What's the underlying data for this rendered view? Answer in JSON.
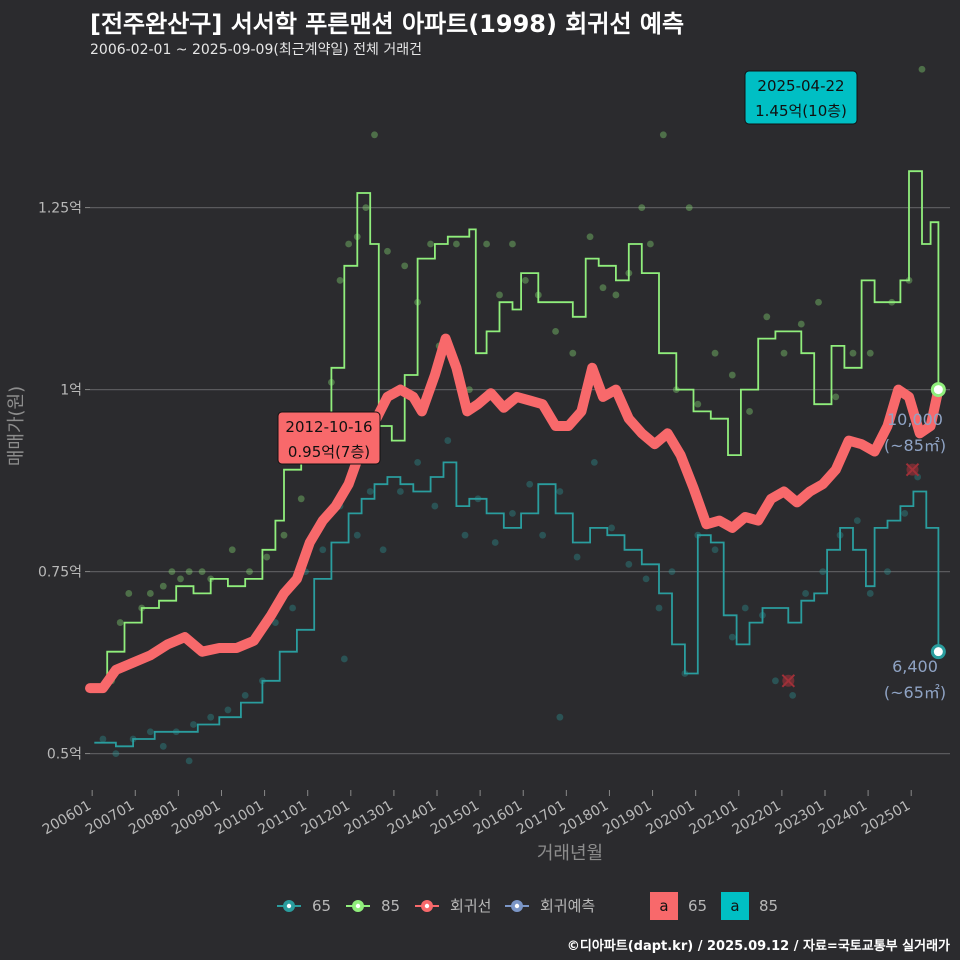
{
  "title": "[전주완산구] 서서학 푸른맨션 아파트(1998) 회귀선 예측",
  "subtitle": "2006-02-01 ~ 2025-09-09(최근계약일) 전체 거래건",
  "caption": "©디아파트(dapt.kr) / 2025.09.12 / 자료=국토교통부 실거래가",
  "colors": {
    "background": "#2b2b2e",
    "grid": "#5a5a5d",
    "s65": "#2a9d9e",
    "s85": "#90ee7c",
    "regression": "#f8696b",
    "forecast": "#7b96c7",
    "label65": "#00bfc4",
    "outlier": "#a03038"
  },
  "chart_data": {
    "type": "line",
    "xlabel": "거래년월",
    "ylabel": "매매가(원)",
    "x_ticks": [
      "200601",
      "200701",
      "200801",
      "200901",
      "201001",
      "201101",
      "201201",
      "201301",
      "201401",
      "201501",
      "201601",
      "201701",
      "201801",
      "201901",
      "202001",
      "202101",
      "202201",
      "202301",
      "202401",
      "202501"
    ],
    "xlim": [
      2006.0,
      2025.95
    ],
    "ylim": [
      0.45,
      1.45
    ],
    "y_ticks": [
      {
        "value": 0.5,
        "label": "0.5억"
      },
      {
        "value": 0.75,
        "label": "0.75억"
      },
      {
        "value": 1.0,
        "label": "1억"
      },
      {
        "value": 1.25,
        "label": "1.25억"
      }
    ],
    "series": [
      {
        "name": "85",
        "role": "area85",
        "points": [
          [
            2006.1,
            0.59
          ],
          [
            2006.4,
            0.64
          ],
          [
            2006.8,
            0.68
          ],
          [
            2007.2,
            0.7
          ],
          [
            2007.6,
            0.71
          ],
          [
            2008.0,
            0.73
          ],
          [
            2008.4,
            0.72
          ],
          [
            2008.8,
            0.74
          ],
          [
            2009.2,
            0.73
          ],
          [
            2009.6,
            0.74
          ],
          [
            2010.0,
            0.78
          ],
          [
            2010.3,
            0.82
          ],
          [
            2010.5,
            0.89
          ],
          [
            2010.9,
            0.9
          ],
          [
            2011.2,
            0.96
          ],
          [
            2011.6,
            1.03
          ],
          [
            2011.9,
            1.17
          ],
          [
            2012.2,
            1.27
          ],
          [
            2012.5,
            1.2
          ],
          [
            2012.7,
            0.95
          ],
          [
            2013.0,
            0.93
          ],
          [
            2013.3,
            1.02
          ],
          [
            2013.6,
            1.18
          ],
          [
            2014.0,
            1.2
          ],
          [
            2014.3,
            1.21
          ],
          [
            2014.6,
            1.21
          ],
          [
            2014.8,
            1.22
          ],
          [
            2014.95,
            1.05
          ],
          [
            2015.2,
            1.08
          ],
          [
            2015.5,
            1.12
          ],
          [
            2015.8,
            1.11
          ],
          [
            2016.0,
            1.16
          ],
          [
            2016.4,
            1.12
          ],
          [
            2016.7,
            1.12
          ],
          [
            2017.2,
            1.1
          ],
          [
            2017.5,
            1.18
          ],
          [
            2017.8,
            1.17
          ],
          [
            2018.2,
            1.15
          ],
          [
            2018.5,
            1.2
          ],
          [
            2018.8,
            1.16
          ],
          [
            2019.2,
            1.05
          ],
          [
            2019.6,
            1.0
          ],
          [
            2020.0,
            0.97
          ],
          [
            2020.4,
            0.96
          ],
          [
            2020.8,
            0.91
          ],
          [
            2021.1,
            1.0
          ],
          [
            2021.5,
            1.07
          ],
          [
            2021.9,
            1.08
          ],
          [
            2022.2,
            1.08
          ],
          [
            2022.5,
            1.05
          ],
          [
            2022.8,
            0.98
          ],
          [
            2023.2,
            1.06
          ],
          [
            2023.5,
            1.03
          ],
          [
            2023.9,
            1.15
          ],
          [
            2024.2,
            1.12
          ],
          [
            2024.5,
            1.12
          ],
          [
            2024.8,
            1.15
          ],
          [
            2025.0,
            1.3
          ],
          [
            2025.3,
            1.2
          ],
          [
            2025.5,
            1.23
          ],
          [
            2025.68,
            1.0
          ]
        ]
      },
      {
        "name": "65",
        "role": "area65",
        "points": [
          [
            2006.1,
            0.515
          ],
          [
            2006.6,
            0.51
          ],
          [
            2007.0,
            0.52
          ],
          [
            2007.5,
            0.53
          ],
          [
            2008.0,
            0.53
          ],
          [
            2008.5,
            0.54
          ],
          [
            2009.0,
            0.55
          ],
          [
            2009.5,
            0.57
          ],
          [
            2010.0,
            0.6
          ],
          [
            2010.4,
            0.64
          ],
          [
            2010.8,
            0.67
          ],
          [
            2011.2,
            0.74
          ],
          [
            2011.6,
            0.79
          ],
          [
            2012.0,
            0.83
          ],
          [
            2012.3,
            0.85
          ],
          [
            2012.6,
            0.87
          ],
          [
            2012.9,
            0.88
          ],
          [
            2013.2,
            0.87
          ],
          [
            2013.5,
            0.86
          ],
          [
            2013.9,
            0.88
          ],
          [
            2014.2,
            0.9
          ],
          [
            2014.5,
            0.84
          ],
          [
            2014.8,
            0.85
          ],
          [
            2015.2,
            0.83
          ],
          [
            2015.6,
            0.81
          ],
          [
            2016.0,
            0.83
          ],
          [
            2016.4,
            0.87
          ],
          [
            2016.8,
            0.83
          ],
          [
            2017.2,
            0.79
          ],
          [
            2017.6,
            0.81
          ],
          [
            2018.0,
            0.8
          ],
          [
            2018.4,
            0.78
          ],
          [
            2018.8,
            0.76
          ],
          [
            2019.2,
            0.72
          ],
          [
            2019.5,
            0.65
          ],
          [
            2019.8,
            0.61
          ],
          [
            2020.1,
            0.8
          ],
          [
            2020.4,
            0.79
          ],
          [
            2020.7,
            0.69
          ],
          [
            2021.0,
            0.65
          ],
          [
            2021.3,
            0.68
          ],
          [
            2021.6,
            0.7
          ],
          [
            2021.9,
            0.7
          ],
          [
            2022.2,
            0.68
          ],
          [
            2022.5,
            0.71
          ],
          [
            2022.8,
            0.72
          ],
          [
            2023.1,
            0.78
          ],
          [
            2023.4,
            0.81
          ],
          [
            2023.7,
            0.78
          ],
          [
            2024.0,
            0.73
          ],
          [
            2024.2,
            0.81
          ],
          [
            2024.5,
            0.82
          ],
          [
            2024.8,
            0.84
          ],
          [
            2025.1,
            0.86
          ],
          [
            2025.4,
            0.81
          ],
          [
            2025.68,
            0.64
          ]
        ]
      },
      {
        "name": "회귀선",
        "role": "regression",
        "points": [
          [
            2006.0,
            0.59
          ],
          [
            2006.3,
            0.59
          ],
          [
            2006.6,
            0.615
          ],
          [
            2007.0,
            0.625
          ],
          [
            2007.4,
            0.635
          ],
          [
            2007.8,
            0.65
          ],
          [
            2008.2,
            0.66
          ],
          [
            2008.6,
            0.64
          ],
          [
            2009.0,
            0.645
          ],
          [
            2009.4,
            0.645
          ],
          [
            2009.8,
            0.655
          ],
          [
            2010.2,
            0.69
          ],
          [
            2010.5,
            0.72
          ],
          [
            2010.8,
            0.74
          ],
          [
            2011.1,
            0.79
          ],
          [
            2011.4,
            0.82
          ],
          [
            2011.7,
            0.84
          ],
          [
            2012.0,
            0.87
          ],
          [
            2012.3,
            0.92
          ],
          [
            2012.6,
            0.955
          ],
          [
            2012.9,
            0.99
          ],
          [
            2013.2,
            1.0
          ],
          [
            2013.5,
            0.99
          ],
          [
            2013.7,
            0.97
          ],
          [
            2014.0,
            1.02
          ],
          [
            2014.25,
            1.07
          ],
          [
            2014.5,
            1.03
          ],
          [
            2014.75,
            0.97
          ],
          [
            2015.0,
            0.98
          ],
          [
            2015.3,
            0.995
          ],
          [
            2015.6,
            0.975
          ],
          [
            2015.9,
            0.99
          ],
          [
            2016.2,
            0.985
          ],
          [
            2016.5,
            0.98
          ],
          [
            2016.8,
            0.95
          ],
          [
            2017.1,
            0.95
          ],
          [
            2017.4,
            0.97
          ],
          [
            2017.65,
            1.03
          ],
          [
            2017.9,
            0.99
          ],
          [
            2018.2,
            1.0
          ],
          [
            2018.5,
            0.96
          ],
          [
            2018.8,
            0.94
          ],
          [
            2019.1,
            0.925
          ],
          [
            2019.4,
            0.94
          ],
          [
            2019.7,
            0.91
          ],
          [
            2020.0,
            0.865
          ],
          [
            2020.3,
            0.815
          ],
          [
            2020.6,
            0.82
          ],
          [
            2020.9,
            0.81
          ],
          [
            2021.2,
            0.825
          ],
          [
            2021.5,
            0.82
          ],
          [
            2021.8,
            0.85
          ],
          [
            2022.1,
            0.86
          ],
          [
            2022.4,
            0.845
          ],
          [
            2022.7,
            0.86
          ],
          [
            2023.0,
            0.87
          ],
          [
            2023.3,
            0.89
          ],
          [
            2023.6,
            0.93
          ],
          [
            2023.9,
            0.925
          ],
          [
            2024.2,
            0.915
          ],
          [
            2024.5,
            0.95
          ],
          [
            2024.75,
            1.0
          ],
          [
            2025.0,
            0.99
          ],
          [
            2025.25,
            0.94
          ],
          [
            2025.5,
            0.95
          ],
          [
            2025.68,
            1.0
          ]
        ]
      }
    ],
    "scatter85": [
      [
        2006.5,
        0.6
      ],
      [
        2006.7,
        0.68
      ],
      [
        2006.9,
        0.72
      ],
      [
        2007.2,
        0.7
      ],
      [
        2007.4,
        0.72
      ],
      [
        2007.7,
        0.73
      ],
      [
        2007.9,
        0.75
      ],
      [
        2008.1,
        0.74
      ],
      [
        2008.3,
        0.75
      ],
      [
        2008.6,
        0.75
      ],
      [
        2008.8,
        0.74
      ],
      [
        2009.3,
        0.78
      ],
      [
        2009.7,
        0.75
      ],
      [
        2010.1,
        0.77
      ],
      [
        2010.5,
        0.8
      ],
      [
        2010.9,
        0.85
      ],
      [
        2011.3,
        0.92
      ],
      [
        2011.6,
        1.01
      ],
      [
        2011.8,
        1.15
      ],
      [
        2012.0,
        1.2
      ],
      [
        2012.2,
        1.21
      ],
      [
        2012.4,
        1.25
      ],
      [
        2012.6,
        1.35
      ],
      [
        2012.9,
        1.19
      ],
      [
        2013.3,
        1.17
      ],
      [
        2013.6,
        1.12
      ],
      [
        2013.9,
        1.2
      ],
      [
        2014.1,
        1.06
      ],
      [
        2014.5,
        1.2
      ],
      [
        2014.8,
        1.0
      ],
      [
        2015.2,
        1.2
      ],
      [
        2015.5,
        1.13
      ],
      [
        2015.8,
        1.2
      ],
      [
        2016.1,
        1.15
      ],
      [
        2016.4,
        1.13
      ],
      [
        2016.8,
        1.08
      ],
      [
        2017.2,
        1.05
      ],
      [
        2017.6,
        1.21
      ],
      [
        2017.9,
        1.14
      ],
      [
        2018.2,
        1.13
      ],
      [
        2018.5,
        1.16
      ],
      [
        2018.8,
        1.25
      ],
      [
        2019.0,
        1.2
      ],
      [
        2019.3,
        1.35
      ],
      [
        2019.6,
        1.0
      ],
      [
        2019.9,
        1.25
      ],
      [
        2020.1,
        0.98
      ],
      [
        2020.5,
        1.05
      ],
      [
        2020.9,
        1.02
      ],
      [
        2021.3,
        0.97
      ],
      [
        2021.7,
        1.1
      ],
      [
        2022.1,
        1.05
      ],
      [
        2022.5,
        1.09
      ],
      [
        2022.9,
        1.12
      ],
      [
        2023.3,
        0.99
      ],
      [
        2023.7,
        1.05
      ],
      [
        2024.1,
        1.05
      ],
      [
        2024.6,
        1.12
      ],
      [
        2025.0,
        1.15
      ],
      [
        2025.3,
        1.44
      ]
    ],
    "scatter65": [
      [
        2006.3,
        0.52
      ],
      [
        2006.6,
        0.5
      ],
      [
        2007.0,
        0.52
      ],
      [
        2007.4,
        0.53
      ],
      [
        2007.7,
        0.51
      ],
      [
        2008.0,
        0.53
      ],
      [
        2008.4,
        0.54
      ],
      [
        2008.8,
        0.55
      ],
      [
        2009.2,
        0.56
      ],
      [
        2009.6,
        0.58
      ],
      [
        2010.0,
        0.6
      ],
      [
        2010.3,
        0.68
      ],
      [
        2010.7,
        0.7
      ],
      [
        2011.0,
        0.75
      ],
      [
        2011.4,
        0.78
      ],
      [
        2011.8,
        0.84
      ],
      [
        2012.2,
        0.8
      ],
      [
        2012.5,
        0.86
      ],
      [
        2012.8,
        0.78
      ],
      [
        2013.2,
        0.86
      ],
      [
        2013.6,
        0.9
      ],
      [
        2014.0,
        0.84
      ],
      [
        2014.3,
        0.93
      ],
      [
        2014.7,
        0.8
      ],
      [
        2015.0,
        0.85
      ],
      [
        2015.4,
        0.79
      ],
      [
        2015.8,
        0.83
      ],
      [
        2016.2,
        0.87
      ],
      [
        2016.5,
        0.8
      ],
      [
        2016.9,
        0.86
      ],
      [
        2017.3,
        0.77
      ],
      [
        2017.7,
        0.9
      ],
      [
        2018.1,
        0.81
      ],
      [
        2018.5,
        0.76
      ],
      [
        2018.9,
        0.74
      ],
      [
        2019.2,
        0.7
      ],
      [
        2019.5,
        0.75
      ],
      [
        2019.8,
        0.61
      ],
      [
        2020.1,
        0.8
      ],
      [
        2020.5,
        0.78
      ],
      [
        2020.9,
        0.66
      ],
      [
        2021.2,
        0.7
      ],
      [
        2021.6,
        0.69
      ],
      [
        2021.9,
        0.6
      ],
      [
        2022.3,
        0.58
      ],
      [
        2022.6,
        0.72
      ],
      [
        2023.0,
        0.75
      ],
      [
        2023.4,
        0.8
      ],
      [
        2023.8,
        0.82
      ],
      [
        2024.1,
        0.72
      ],
      [
        2024.5,
        0.75
      ],
      [
        2024.9,
        0.83
      ],
      [
        2025.2,
        0.88
      ],
      [
        2016.9,
        0.55
      ],
      [
        2011.9,
        0.63
      ],
      [
        2008.3,
        0.49
      ]
    ],
    "outliers": [
      [
        2022.2,
        0.6
      ],
      [
        2025.08,
        0.89
      ]
    ],
    "end_points": {
      "s85": {
        "x": 2025.68,
        "y": 1.0
      },
      "s65": {
        "x": 2025.68,
        "y": 0.64
      }
    },
    "annotations": [
      {
        "id": "ann85",
        "date": "2025-04-22",
        "value": "1.45억(10층)",
        "x": 2025.3,
        "y": 1.44
      },
      {
        "id": "ann65",
        "date": "2012-10-16",
        "value": "0.95억(7층)",
        "x": 2012.8,
        "y": 0.95
      }
    ],
    "end_labels": [
      {
        "id": "end85",
        "count": "10,000",
        "area": "(~85㎡)",
        "y": 1.0
      },
      {
        "id": "end65",
        "count": "6,400",
        "area": "(~65㎡)",
        "y": 0.64
      }
    ],
    "legend": {
      "items": [
        {
          "key": "s65",
          "label": "65"
        },
        {
          "key": "s85",
          "label": "85"
        },
        {
          "key": "regression",
          "label": "회귀선"
        },
        {
          "key": "forecast",
          "label": "회귀예측"
        }
      ],
      "label_items": [
        {
          "key": "regression",
          "letter": "a",
          "label": "65"
        },
        {
          "key": "label65",
          "letter": "a",
          "label": "85"
        }
      ]
    }
  }
}
